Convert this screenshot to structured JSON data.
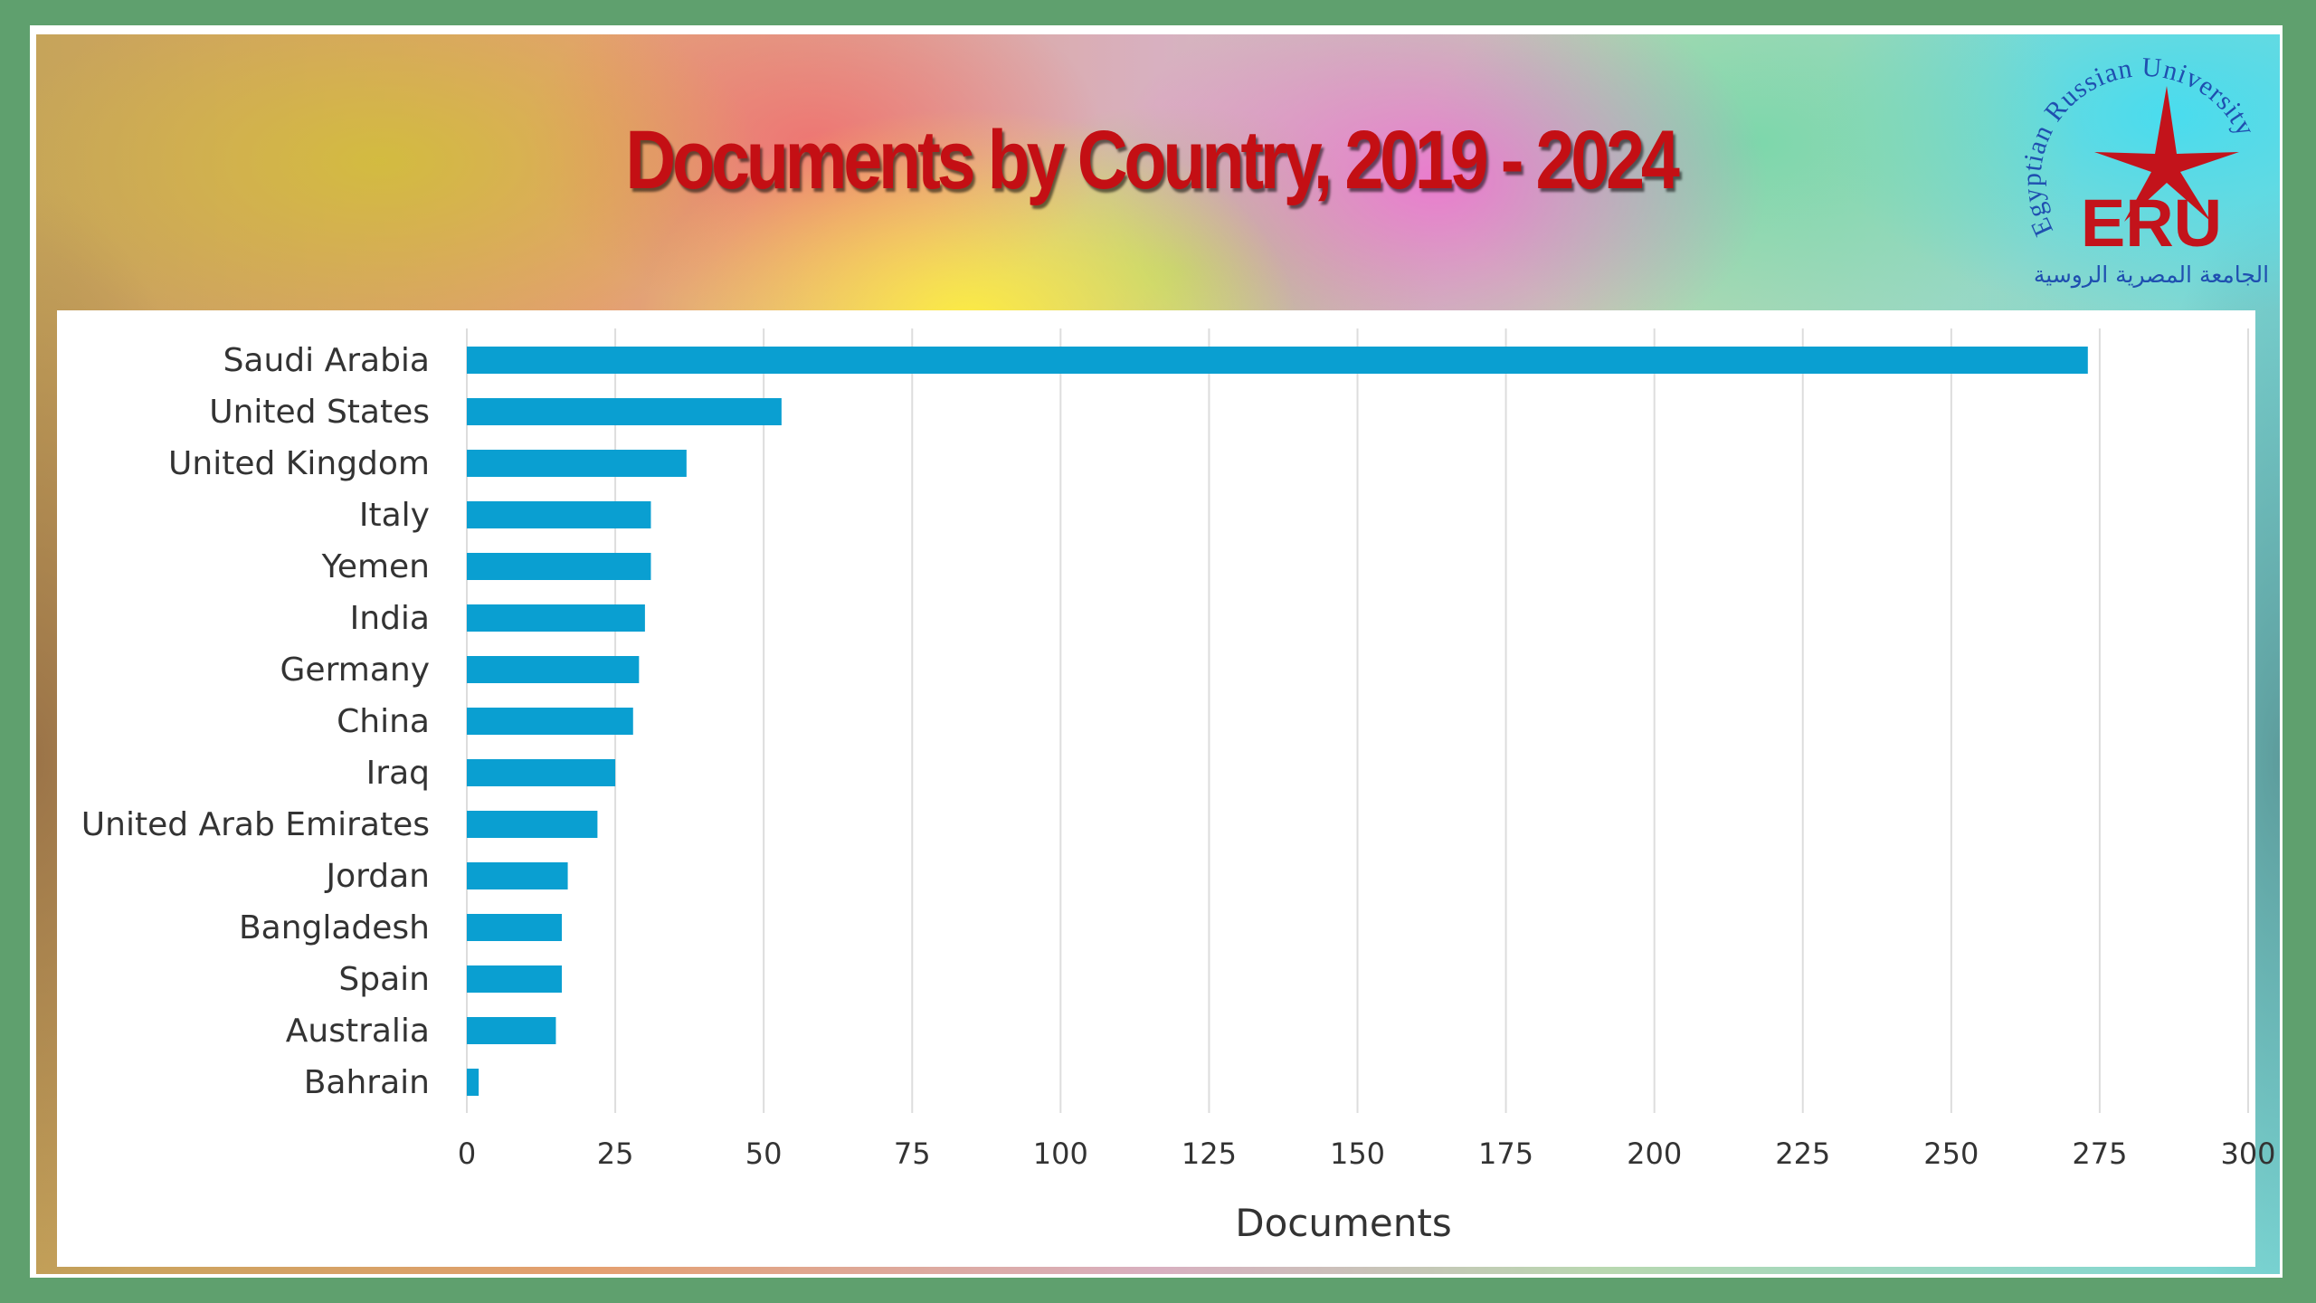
{
  "header": {
    "title": "Documents by Country, 2019 - 2024"
  },
  "logo": {
    "arc_text": "Egyptian Russian University",
    "abbr": "ERU",
    "arabic_text": "الجامعة المصرية الروسية",
    "color_blue": "#1f4fb0",
    "color_red": "#c3131b"
  },
  "chart_data": {
    "type": "bar",
    "orientation": "horizontal",
    "title": "Documents by Country, 2019 - 2024",
    "xlabel": "Documents",
    "ylabel": "",
    "categories": [
      "Saudi Arabia",
      "United States",
      "United Kingdom",
      "Italy",
      "Yemen",
      "India",
      "Germany",
      "China",
      "Iraq",
      "United Arab Emirates",
      "Jordan",
      "Bangladesh",
      "Spain",
      "Australia",
      "Bahrain"
    ],
    "values": [
      273,
      53,
      37,
      31,
      31,
      30,
      29,
      28,
      25,
      22,
      17,
      16,
      16,
      15,
      2
    ],
    "xlim": [
      0,
      300
    ],
    "xticks": [
      "0",
      "25",
      "50",
      "75",
      "100",
      "125",
      "150",
      "175",
      "200",
      "225",
      "250",
      "275",
      "300"
    ],
    "grid": "vertical",
    "bar_color": "#0a9fd1",
    "grid_color": "#dddddd"
  }
}
